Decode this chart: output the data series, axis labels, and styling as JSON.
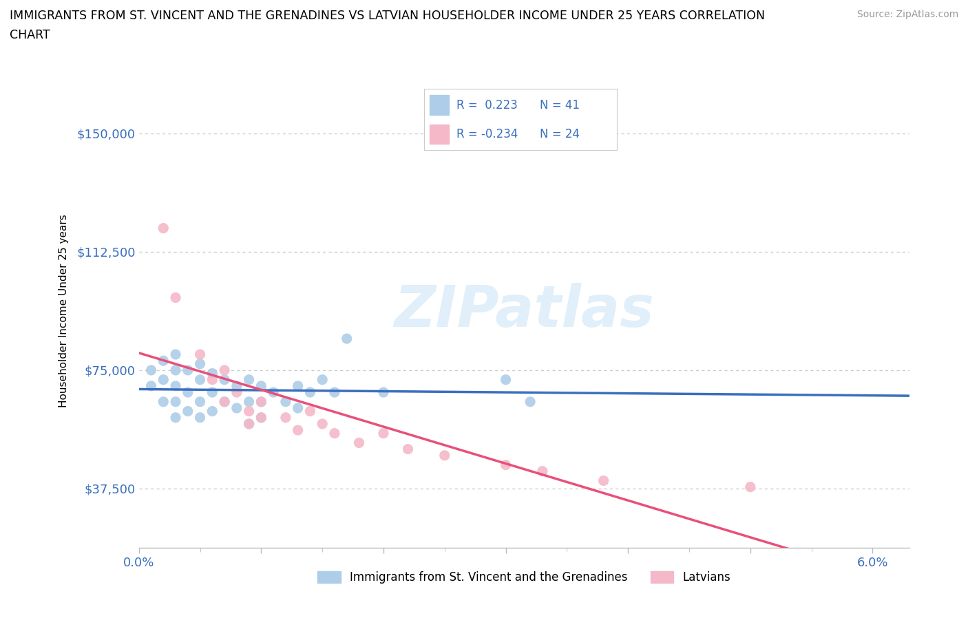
{
  "title_line1": "IMMIGRANTS FROM ST. VINCENT AND THE GRENADINES VS LATVIAN HOUSEHOLDER INCOME UNDER 25 YEARS CORRELATION",
  "title_line2": "CHART",
  "source_text": "Source: ZipAtlas.com",
  "ylabel": "Householder Income Under 25 years",
  "xlim": [
    0.0,
    0.063
  ],
  "ylim": [
    18750,
    168750
  ],
  "yticks": [
    37500,
    75000,
    112500,
    150000
  ],
  "ytick_labels": [
    "$37,500",
    "$75,000",
    "$112,500",
    "$150,000"
  ],
  "xticks": [
    0.0,
    0.01,
    0.02,
    0.03,
    0.04,
    0.05,
    0.06
  ],
  "xtick_labels_show": [
    "0.0%",
    "",
    "",
    "",
    "",
    "",
    "6.0%"
  ],
  "watermark": "ZIPatlas",
  "blue_color": "#aecde8",
  "pink_color": "#f4b8c8",
  "blue_line_color": "#3a6fbe",
  "pink_line_color": "#e8507a",
  "dash_line_color": "#aaaaaa",
  "label_blue": "Immigrants from St. Vincent and the Grenadines",
  "label_pink": "Latvians",
  "legend_color": "#3a6fbe",
  "blue_scatter_x": [
    0.001,
    0.001,
    0.002,
    0.002,
    0.002,
    0.003,
    0.003,
    0.003,
    0.003,
    0.003,
    0.004,
    0.004,
    0.004,
    0.005,
    0.005,
    0.005,
    0.005,
    0.006,
    0.006,
    0.006,
    0.007,
    0.007,
    0.008,
    0.008,
    0.009,
    0.009,
    0.009,
    0.01,
    0.01,
    0.01,
    0.011,
    0.012,
    0.013,
    0.013,
    0.014,
    0.015,
    0.016,
    0.017,
    0.02,
    0.03,
    0.032
  ],
  "blue_scatter_y": [
    75000,
    70000,
    78000,
    72000,
    65000,
    80000,
    75000,
    70000,
    65000,
    60000,
    75000,
    68000,
    62000,
    77000,
    72000,
    65000,
    60000,
    74000,
    68000,
    62000,
    72000,
    65000,
    70000,
    63000,
    72000,
    65000,
    58000,
    70000,
    65000,
    60000,
    68000,
    65000,
    70000,
    63000,
    68000,
    72000,
    68000,
    85000,
    68000,
    72000,
    65000
  ],
  "pink_scatter_x": [
    0.002,
    0.003,
    0.005,
    0.006,
    0.007,
    0.007,
    0.008,
    0.009,
    0.009,
    0.01,
    0.01,
    0.012,
    0.013,
    0.014,
    0.015,
    0.016,
    0.018,
    0.02,
    0.022,
    0.025,
    0.03,
    0.033,
    0.038,
    0.05
  ],
  "pink_scatter_y": [
    120000,
    98000,
    80000,
    72000,
    75000,
    65000,
    68000,
    62000,
    58000,
    65000,
    60000,
    60000,
    56000,
    62000,
    58000,
    55000,
    52000,
    55000,
    50000,
    48000,
    45000,
    43000,
    40000,
    38000
  ],
  "background_color": "#ffffff",
  "grid_color": "#cccccc",
  "tick_color": "#3a6fbe"
}
